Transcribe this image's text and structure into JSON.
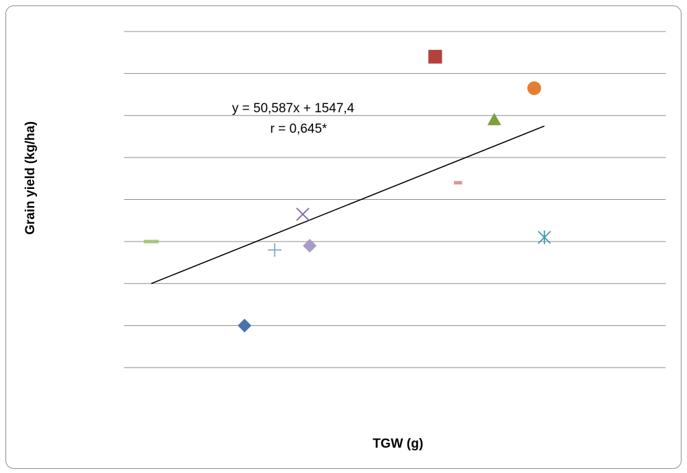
{
  "chart_data": {
    "type": "scatter",
    "title": "",
    "xlabel": "TGW (g)",
    "ylabel": "Grain yield (kg/ha)",
    "ylim": [
      0,
      8
    ],
    "xlim": [
      0,
      13.3
    ],
    "grid": "horizontal",
    "legend": "none",
    "points": [
      {
        "x": 0.67,
        "y": 3.0,
        "marker": "dash",
        "color": "#A5C67E"
      },
      {
        "x": 2.96,
        "y": 1.0,
        "marker": "diamond",
        "color": "#4A72AE"
      },
      {
        "x": 3.7,
        "y": 2.8,
        "marker": "plus",
        "color": "#7F9FD0"
      },
      {
        "x": 4.39,
        "y": 3.65,
        "marker": "x",
        "color": "#7B63A4"
      },
      {
        "x": 4.56,
        "y": 2.9,
        "marker": "diamond",
        "color": "#A89BC4"
      },
      {
        "x": 7.64,
        "y": 7.4,
        "marker": "square",
        "color": "#B5413E"
      },
      {
        "x": 8.2,
        "y": 4.4,
        "marker": "dash-short",
        "color": "#D99694"
      },
      {
        "x": 9.09,
        "y": 5.9,
        "marker": "triangle",
        "color": "#7BA03E"
      },
      {
        "x": 10.07,
        "y": 6.65,
        "marker": "circle",
        "color": "#E57E30"
      },
      {
        "x": 10.32,
        "y": 3.1,
        "marker": "asterisk",
        "color": "#3A9BAD"
      }
    ],
    "trendline": {
      "x": [
        0.67,
        10.32
      ],
      "y": [
        2.0,
        5.75
      ],
      "color": "#000000"
    },
    "annotations": {
      "equation": "y = 50,587x + 1547,4",
      "r_value": "r = 0,645*"
    }
  }
}
